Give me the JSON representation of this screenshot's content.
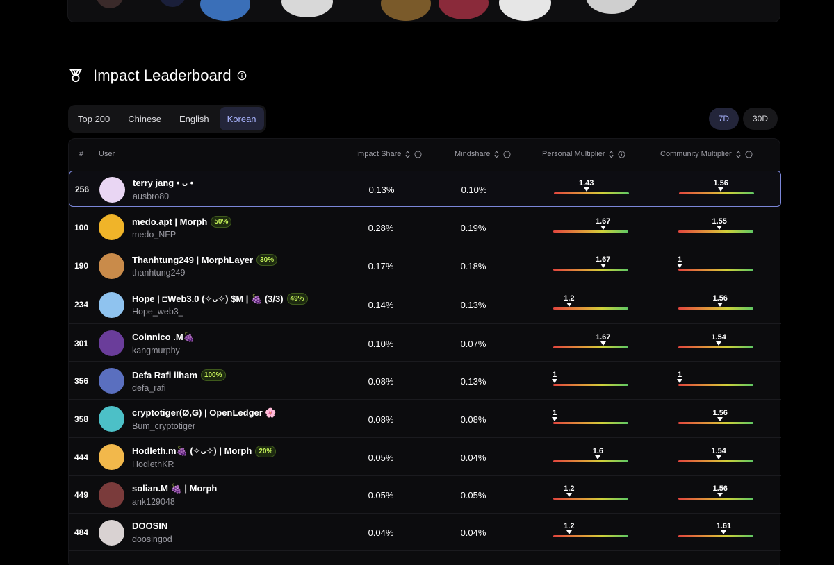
{
  "header": {
    "title": "Impact Leaderboard"
  },
  "tabs": [
    {
      "label": "Top 200",
      "active": false
    },
    {
      "label": "Chinese",
      "active": false
    },
    {
      "label": "English",
      "active": false
    },
    {
      "label": "Korean",
      "active": true
    }
  ],
  "range": [
    {
      "label": "7D",
      "active": true
    },
    {
      "label": "30D",
      "active": false
    }
  ],
  "columns": {
    "rank": "#",
    "user": "User",
    "impact_share": "Impact Share",
    "mindshare": "Mindshare",
    "personal_multiplier": "Personal Multiplier",
    "community_multiplier": "Community Multiplier"
  },
  "multiplier_range": {
    "min": 1,
    "max": 2
  },
  "rows": [
    {
      "rank": "256",
      "name": "terry jang • ᴗ •",
      "badge": "",
      "handle": "ausbro80",
      "impact": "0.13%",
      "mindshare": "0.10%",
      "personal": "1.43",
      "community": "1.56",
      "highlight": true,
      "avatar_color": "#e9d6f3"
    },
    {
      "rank": "100",
      "name": "medo.apt | Morph",
      "badge": "50%",
      "handle": "medo_NFP",
      "impact": "0.28%",
      "mindshare": "0.19%",
      "personal": "1.67",
      "community": "1.55",
      "highlight": false,
      "avatar_color": "#f0b429"
    },
    {
      "rank": "190",
      "name": "Thanhtung249 | MorphLayer",
      "badge": "30%",
      "handle": "thanhtung249",
      "impact": "0.17%",
      "mindshare": "0.18%",
      "personal": "1.67",
      "community": "1",
      "highlight": false,
      "avatar_color": "#c98b4a"
    },
    {
      "rank": "234",
      "name": "Hope | ◘Web3.0 (✧ᴗ✧) $M | 🍇 (3/3)",
      "badge": "49%",
      "handle": "Hope_web3_",
      "impact": "0.14%",
      "mindshare": "0.13%",
      "personal": "1.2",
      "community": "1.56",
      "highlight": false,
      "avatar_color": "#8fc3ef"
    },
    {
      "rank": "301",
      "name": "Coinnico .M🍇",
      "badge": "",
      "handle": "kangmurphy",
      "impact": "0.10%",
      "mindshare": "0.07%",
      "personal": "1.67",
      "community": "1.54",
      "highlight": false,
      "avatar_color": "#6a3d9a"
    },
    {
      "rank": "356",
      "name": "Defa Rafi ilham",
      "badge": "100%",
      "handle": "defa_rafi",
      "impact": "0.08%",
      "mindshare": "0.13%",
      "personal": "1",
      "community": "1",
      "highlight": false,
      "avatar_color": "#5a6fbf"
    },
    {
      "rank": "358",
      "name": "cryptotiger(Ø,G) | OpenLedger 🌸",
      "badge": "",
      "handle": "Bum_cryptotiger",
      "impact": "0.08%",
      "mindshare": "0.08%",
      "personal": "1",
      "community": "1.56",
      "highlight": false,
      "avatar_color": "#4cc0c7"
    },
    {
      "rank": "444",
      "name": "Hodleth.m🍇 (✧ᴗ✧) | Morph",
      "badge": "20%",
      "handle": "HodlethKR",
      "impact": "0.05%",
      "mindshare": "0.04%",
      "personal": "1.6",
      "community": "1.54",
      "highlight": false,
      "avatar_color": "#f2b84b"
    },
    {
      "rank": "449",
      "name": "solian.M 🍇 | Morph",
      "badge": "",
      "handle": "ank129048",
      "impact": "0.05%",
      "mindshare": "0.05%",
      "personal": "1.2",
      "community": "1.56",
      "highlight": false,
      "avatar_color": "#7a3b3b"
    },
    {
      "rank": "484",
      "name": "DOOSIN",
      "badge": "",
      "handle": "doosingod",
      "impact": "0.04%",
      "mindshare": "0.04%",
      "personal": "1.2",
      "community": "1.61",
      "highlight": false,
      "avatar_color": "#d9d2d2"
    }
  ]
}
